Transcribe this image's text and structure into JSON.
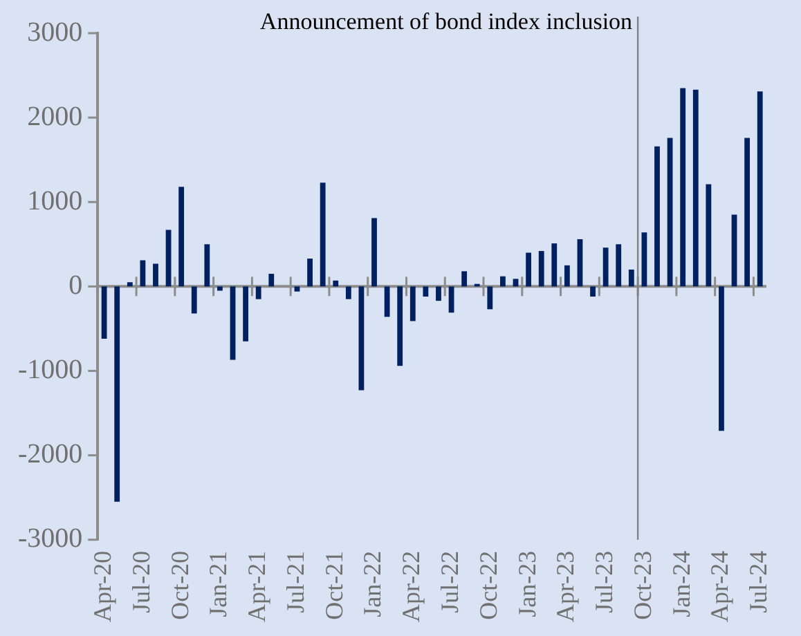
{
  "chart_data": {
    "type": "bar",
    "categories": [
      "Apr-20",
      null,
      null,
      "Jul-20",
      null,
      null,
      "Oct-20",
      null,
      null,
      "Jan-21",
      null,
      null,
      "Apr-21",
      null,
      null,
      "Jul-21",
      null,
      null,
      "Oct-21",
      null,
      null,
      "Jan-22",
      null,
      null,
      "Apr-22",
      null,
      null,
      "Jul-22",
      null,
      null,
      "Oct-22",
      null,
      null,
      "Jan-23",
      null,
      null,
      "Apr-23",
      null,
      null,
      "Jul-23",
      null,
      null,
      "Oct-23",
      null,
      null,
      "Jan-24",
      null,
      null,
      "Apr-24",
      null,
      null,
      "Jul-24"
    ],
    "values": [
      -620,
      -2550,
      50,
      310,
      270,
      670,
      1180,
      -320,
      500,
      -50,
      -870,
      -650,
      -150,
      150,
      0,
      -60,
      330,
      1230,
      70,
      -150,
      -1230,
      810,
      -360,
      -940,
      -410,
      -120,
      -170,
      -310,
      180,
      30,
      -270,
      120,
      90,
      400,
      420,
      510,
      250,
      560,
      -120,
      460,
      500,
      200,
      640,
      1660,
      1760,
      2350,
      2330,
      1210,
      -1710,
      850,
      1760,
      2310
    ],
    "color": "#002060",
    "ylim": [
      -3000,
      3000
    ],
    "yticks": [
      -3000,
      -2000,
      -1000,
      0,
      1000,
      2000,
      3000
    ],
    "grid": false,
    "legend": false,
    "ref_lines": [
      {
        "axis": "x",
        "value": "Oct-23",
        "label": "Announcement of bond index inclusion",
        "color": "#808080"
      }
    ]
  }
}
